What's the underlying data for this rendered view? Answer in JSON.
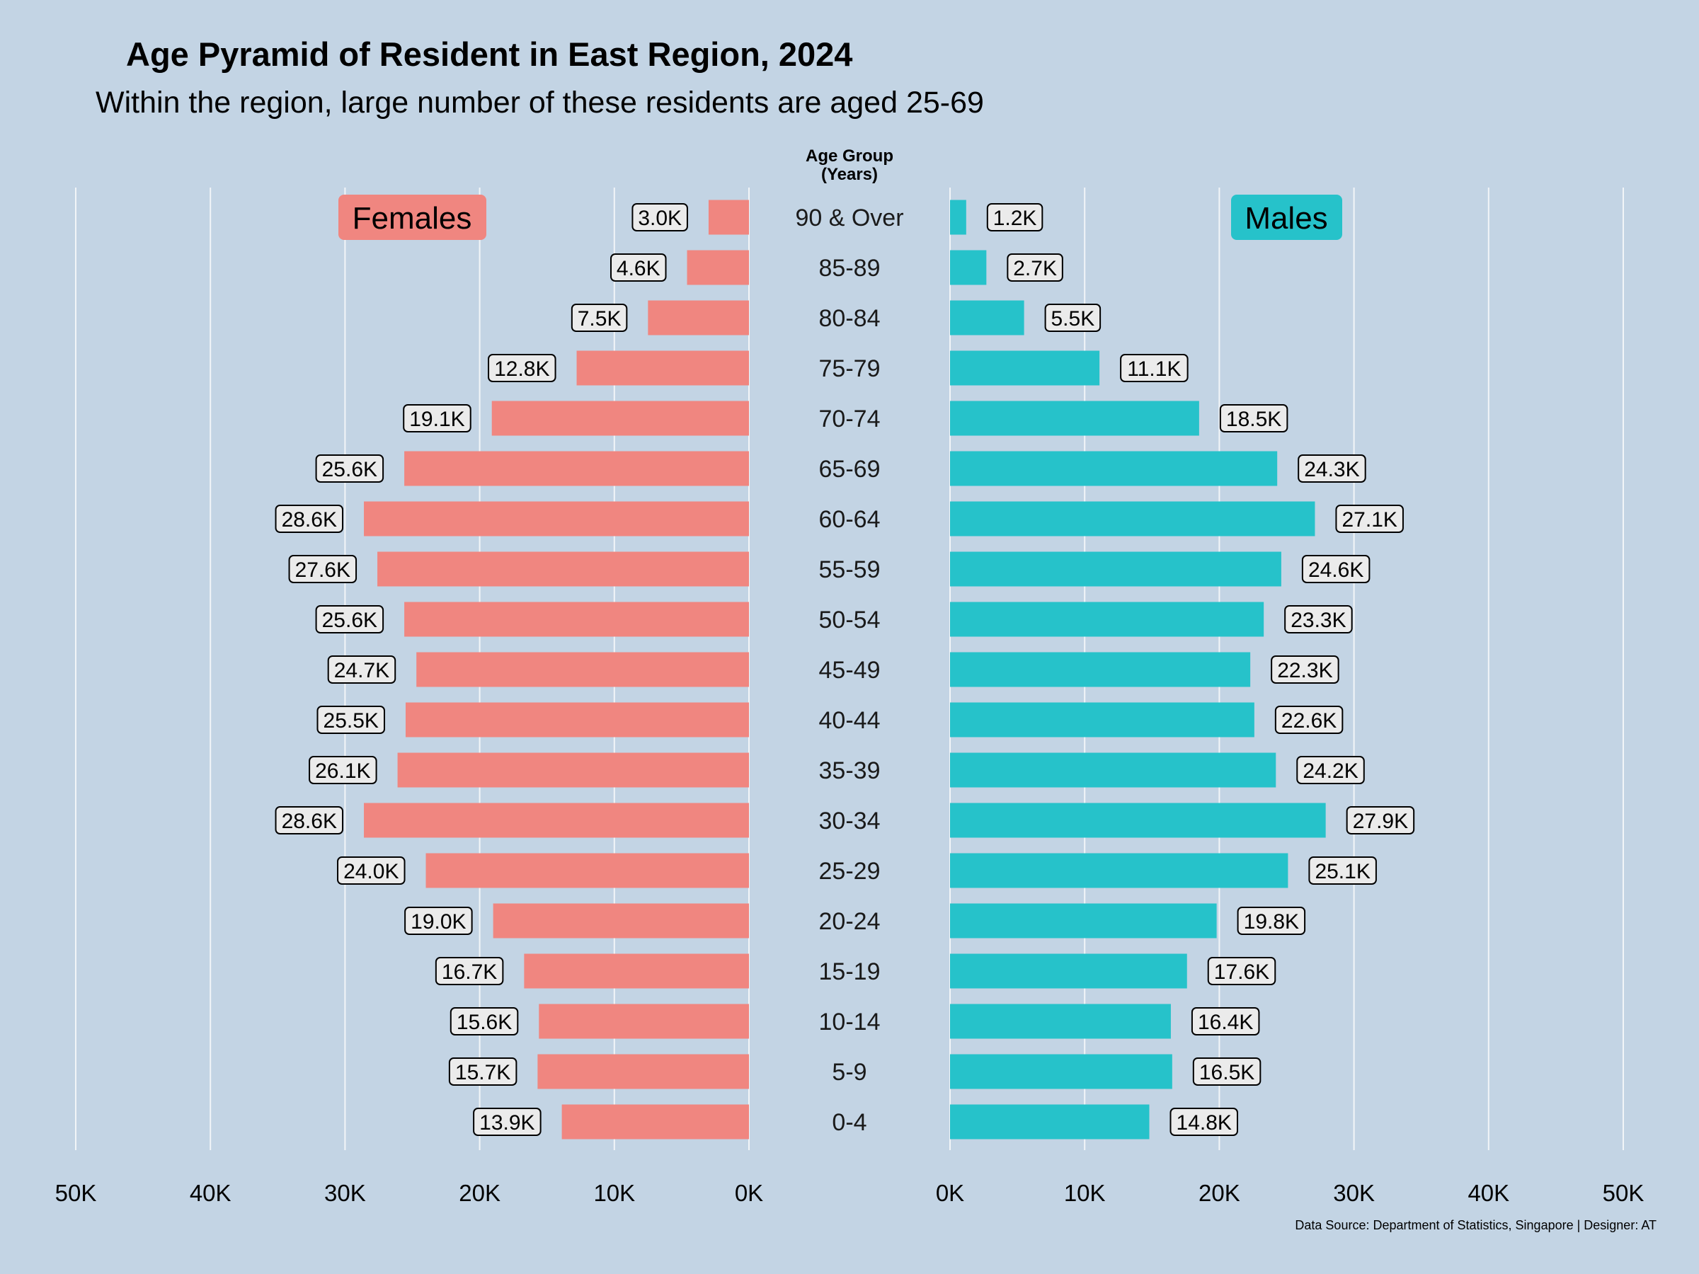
{
  "title": "Age Pyramid of Resident in East Region, 2024",
  "subtitle": "Within the region, large number of these residents are aged 25-69",
  "center_header": [
    "Age Group",
    "(Years)"
  ],
  "caption": "Data Source: Department of Statistics, Singapore | Designer: AT",
  "colors": {
    "background": "#c3d4e4",
    "females": "#f08680",
    "males": "#26c2ca",
    "label_box": "#ebebeb"
  },
  "chart_data": {
    "type": "bar",
    "orientation": "horizontal",
    "title": "Age Pyramid of Resident in East Region, 2024",
    "subtitle": "Within the region, large number of these residents are aged 25-69",
    "categories": [
      "90 & Over",
      "85-89",
      "80-84",
      "75-79",
      "70-74",
      "65-69",
      "60-64",
      "55-59",
      "50-54",
      "45-49",
      "40-44",
      "35-39",
      "30-34",
      "25-29",
      "20-24",
      "15-19",
      "10-14",
      "5-9",
      "0-4"
    ],
    "series": [
      {
        "name": "Females",
        "values": [
          3.0,
          4.6,
          7.5,
          12.8,
          19.1,
          25.6,
          28.6,
          27.6,
          25.6,
          24.7,
          25.5,
          26.1,
          28.6,
          24.0,
          19.0,
          16.7,
          15.6,
          15.7,
          13.9
        ],
        "labels": [
          "3.0K",
          "4.6K",
          "7.5K",
          "12.8K",
          "19.1K",
          "25.6K",
          "28.6K",
          "27.6K",
          "25.6K",
          "24.7K",
          "25.5K",
          "26.1K",
          "28.6K",
          "24.0K",
          "19.0K",
          "16.7K",
          "15.6K",
          "15.7K",
          "13.9K"
        ]
      },
      {
        "name": "Males",
        "values": [
          1.2,
          2.7,
          5.5,
          11.1,
          18.5,
          24.3,
          27.1,
          24.6,
          23.3,
          22.3,
          22.6,
          24.2,
          27.9,
          25.1,
          19.8,
          17.6,
          16.4,
          16.5,
          14.8
        ],
        "labels": [
          "1.2K",
          "2.7K",
          "5.5K",
          "11.1K",
          "18.5K",
          "24.3K",
          "27.1K",
          "24.6K",
          "23.3K",
          "22.3K",
          "22.6K",
          "24.2K",
          "27.9K",
          "25.1K",
          "19.8K",
          "17.6K",
          "16.4K",
          "16.5K",
          "14.8K"
        ]
      }
    ],
    "value_unit": "thousands",
    "xlim": [
      0,
      50
    ],
    "ticks": [
      50,
      40,
      30,
      20,
      10,
      0
    ],
    "tick_labels_left": [
      "50K",
      "40K",
      "30K",
      "20K",
      "10K",
      "0K"
    ],
    "tick_labels_right": [
      "0K",
      "10K",
      "20K",
      "30K",
      "40K",
      "50K"
    ],
    "grid": "vertical",
    "legend": [
      "Females",
      "Males"
    ]
  }
}
